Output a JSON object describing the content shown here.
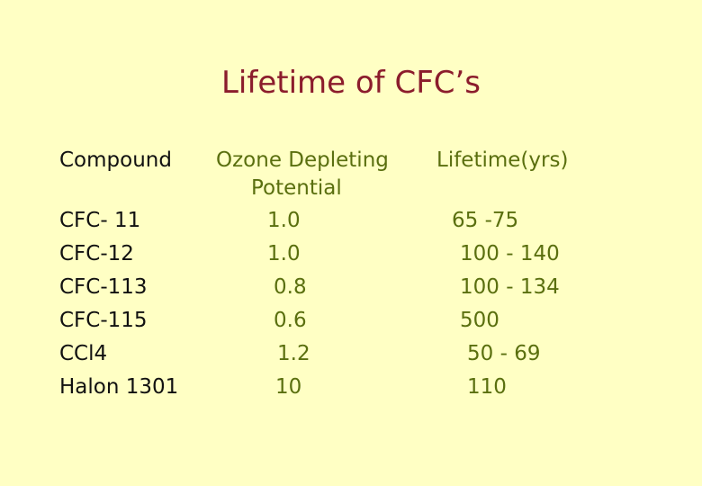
{
  "title": "Lifetime of CFC’s",
  "colors": {
    "background": "#ffffc4",
    "title": "#8b1c2c",
    "compound_text": "#111111",
    "value_text": "#5a6f0f"
  },
  "table": {
    "headers": {
      "compound": "Compound",
      "odp_line1": "Ozone Depleting",
      "odp_line2": "Potential",
      "lifetime": "Lifetime(yrs)"
    },
    "rows": [
      {
        "compound": "CFC- 11",
        "odp": "1.0",
        "lifetime": "65 -75"
      },
      {
        "compound": "CFC-12",
        "odp": "1.0",
        "lifetime": "100 - 140"
      },
      {
        "compound": "CFC-113",
        "odp": "0.8",
        "lifetime": "100 - 134"
      },
      {
        "compound": "CFC-115",
        "odp": "0.6",
        "lifetime": "500"
      },
      {
        "compound": "CCl4",
        "odp": "1.2",
        "lifetime": "50 - 69"
      },
      {
        "compound": "Halon 1301",
        "odp": "10",
        "lifetime": "110"
      }
    ]
  }
}
